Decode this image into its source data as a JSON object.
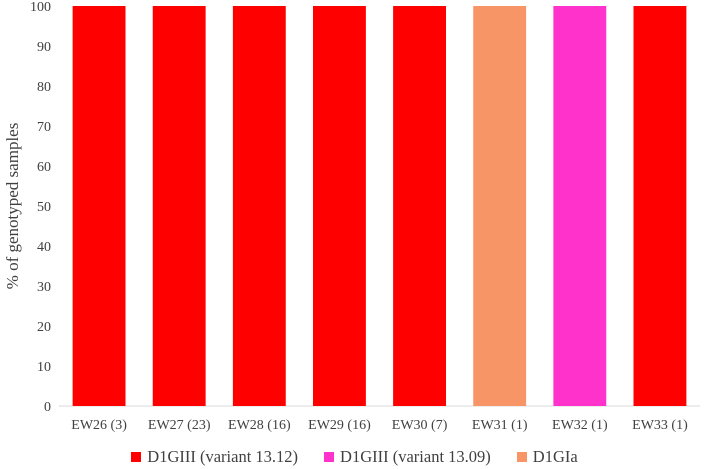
{
  "chart_data": {
    "type": "bar",
    "stacked": true,
    "ylabel": "% of genotyped samples",
    "xlabel": "",
    "ylim": [
      0,
      100
    ],
    "yticks": [
      0,
      10,
      20,
      30,
      40,
      50,
      60,
      70,
      80,
      90,
      100
    ],
    "grid": false,
    "legend_position": "bottom",
    "categories": [
      "EW26 (3)",
      "EW27 (23)",
      "EW28 (16)",
      "EW29 (16)",
      "EW30 (7)",
      "EW31 (1)",
      "EW32 (1)",
      "EW33 (1)"
    ],
    "series": [
      {
        "name": "D1GIII (variant 13.12)",
        "color": "#ff0000",
        "values": [
          100,
          100,
          100,
          100,
          100,
          0,
          0,
          100
        ]
      },
      {
        "name": "D1GIII (variant 13.09)",
        "color": "#ff33cc",
        "values": [
          0,
          0,
          0,
          0,
          0,
          0,
          100,
          0
        ]
      },
      {
        "name": "D1GIa",
        "color": "#f79566",
        "values": [
          0,
          0,
          0,
          0,
          0,
          100,
          0,
          0
        ]
      }
    ]
  }
}
